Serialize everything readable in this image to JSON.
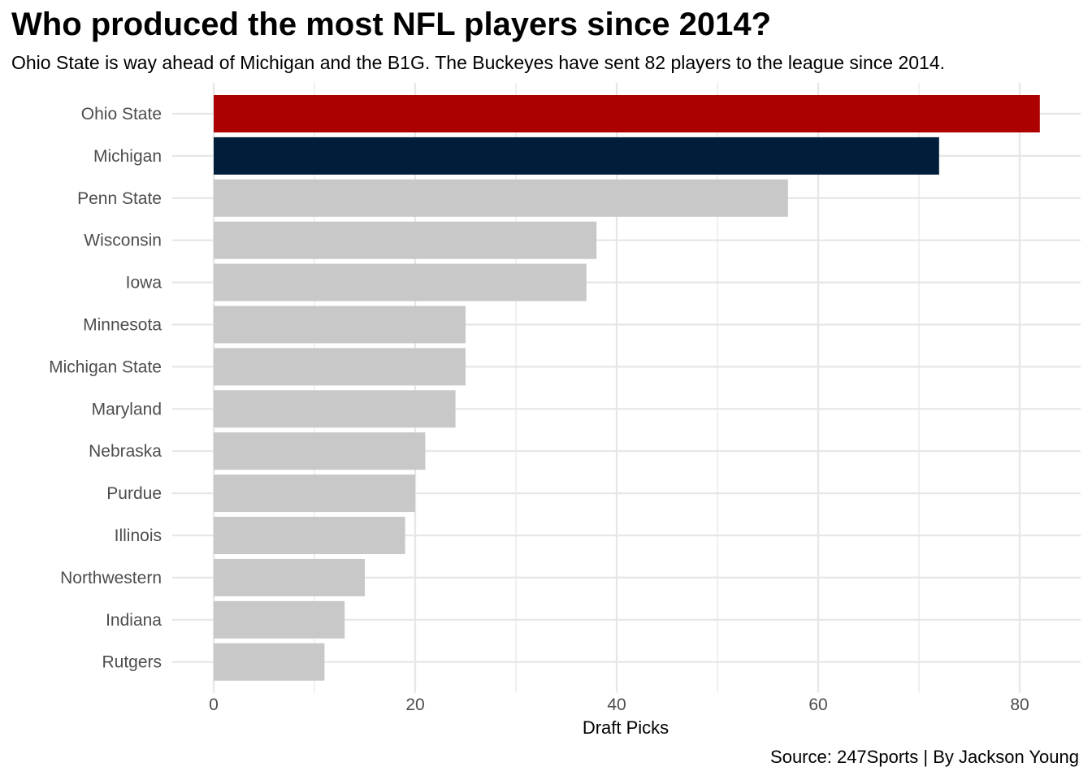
{
  "chart_data": {
    "type": "bar",
    "orientation": "horizontal",
    "title": "Who produced the most NFL players since 2014?",
    "subtitle": "Ohio State is way ahead of Michigan and the B1G. The Buckeyes have sent 82 players to the league since 2014.",
    "caption": "Source: 247Sports | By Jackson Young",
    "xlabel": "Draft Picks",
    "ylabel": "",
    "xlim": [
      0,
      86
    ],
    "xticks": [
      0,
      20,
      40,
      60,
      80
    ],
    "grid": true,
    "legend": "none",
    "categories": [
      "Ohio State",
      "Michigan",
      "Penn State",
      "Wisconsin",
      "Iowa",
      "Minnesota",
      "Michigan State",
      "Maryland",
      "Nebraska",
      "Purdue",
      "Illinois",
      "Northwestern",
      "Indiana",
      "Rutgers"
    ],
    "values": [
      82,
      72,
      57,
      38,
      37,
      25,
      25,
      24,
      21,
      20,
      19,
      15,
      13,
      11
    ],
    "colors": {
      "Ohio State": "#ad0000",
      "Michigan": "#001d3a",
      "default": "#c8c8c8",
      "grid": "#e6e6e6"
    }
  }
}
